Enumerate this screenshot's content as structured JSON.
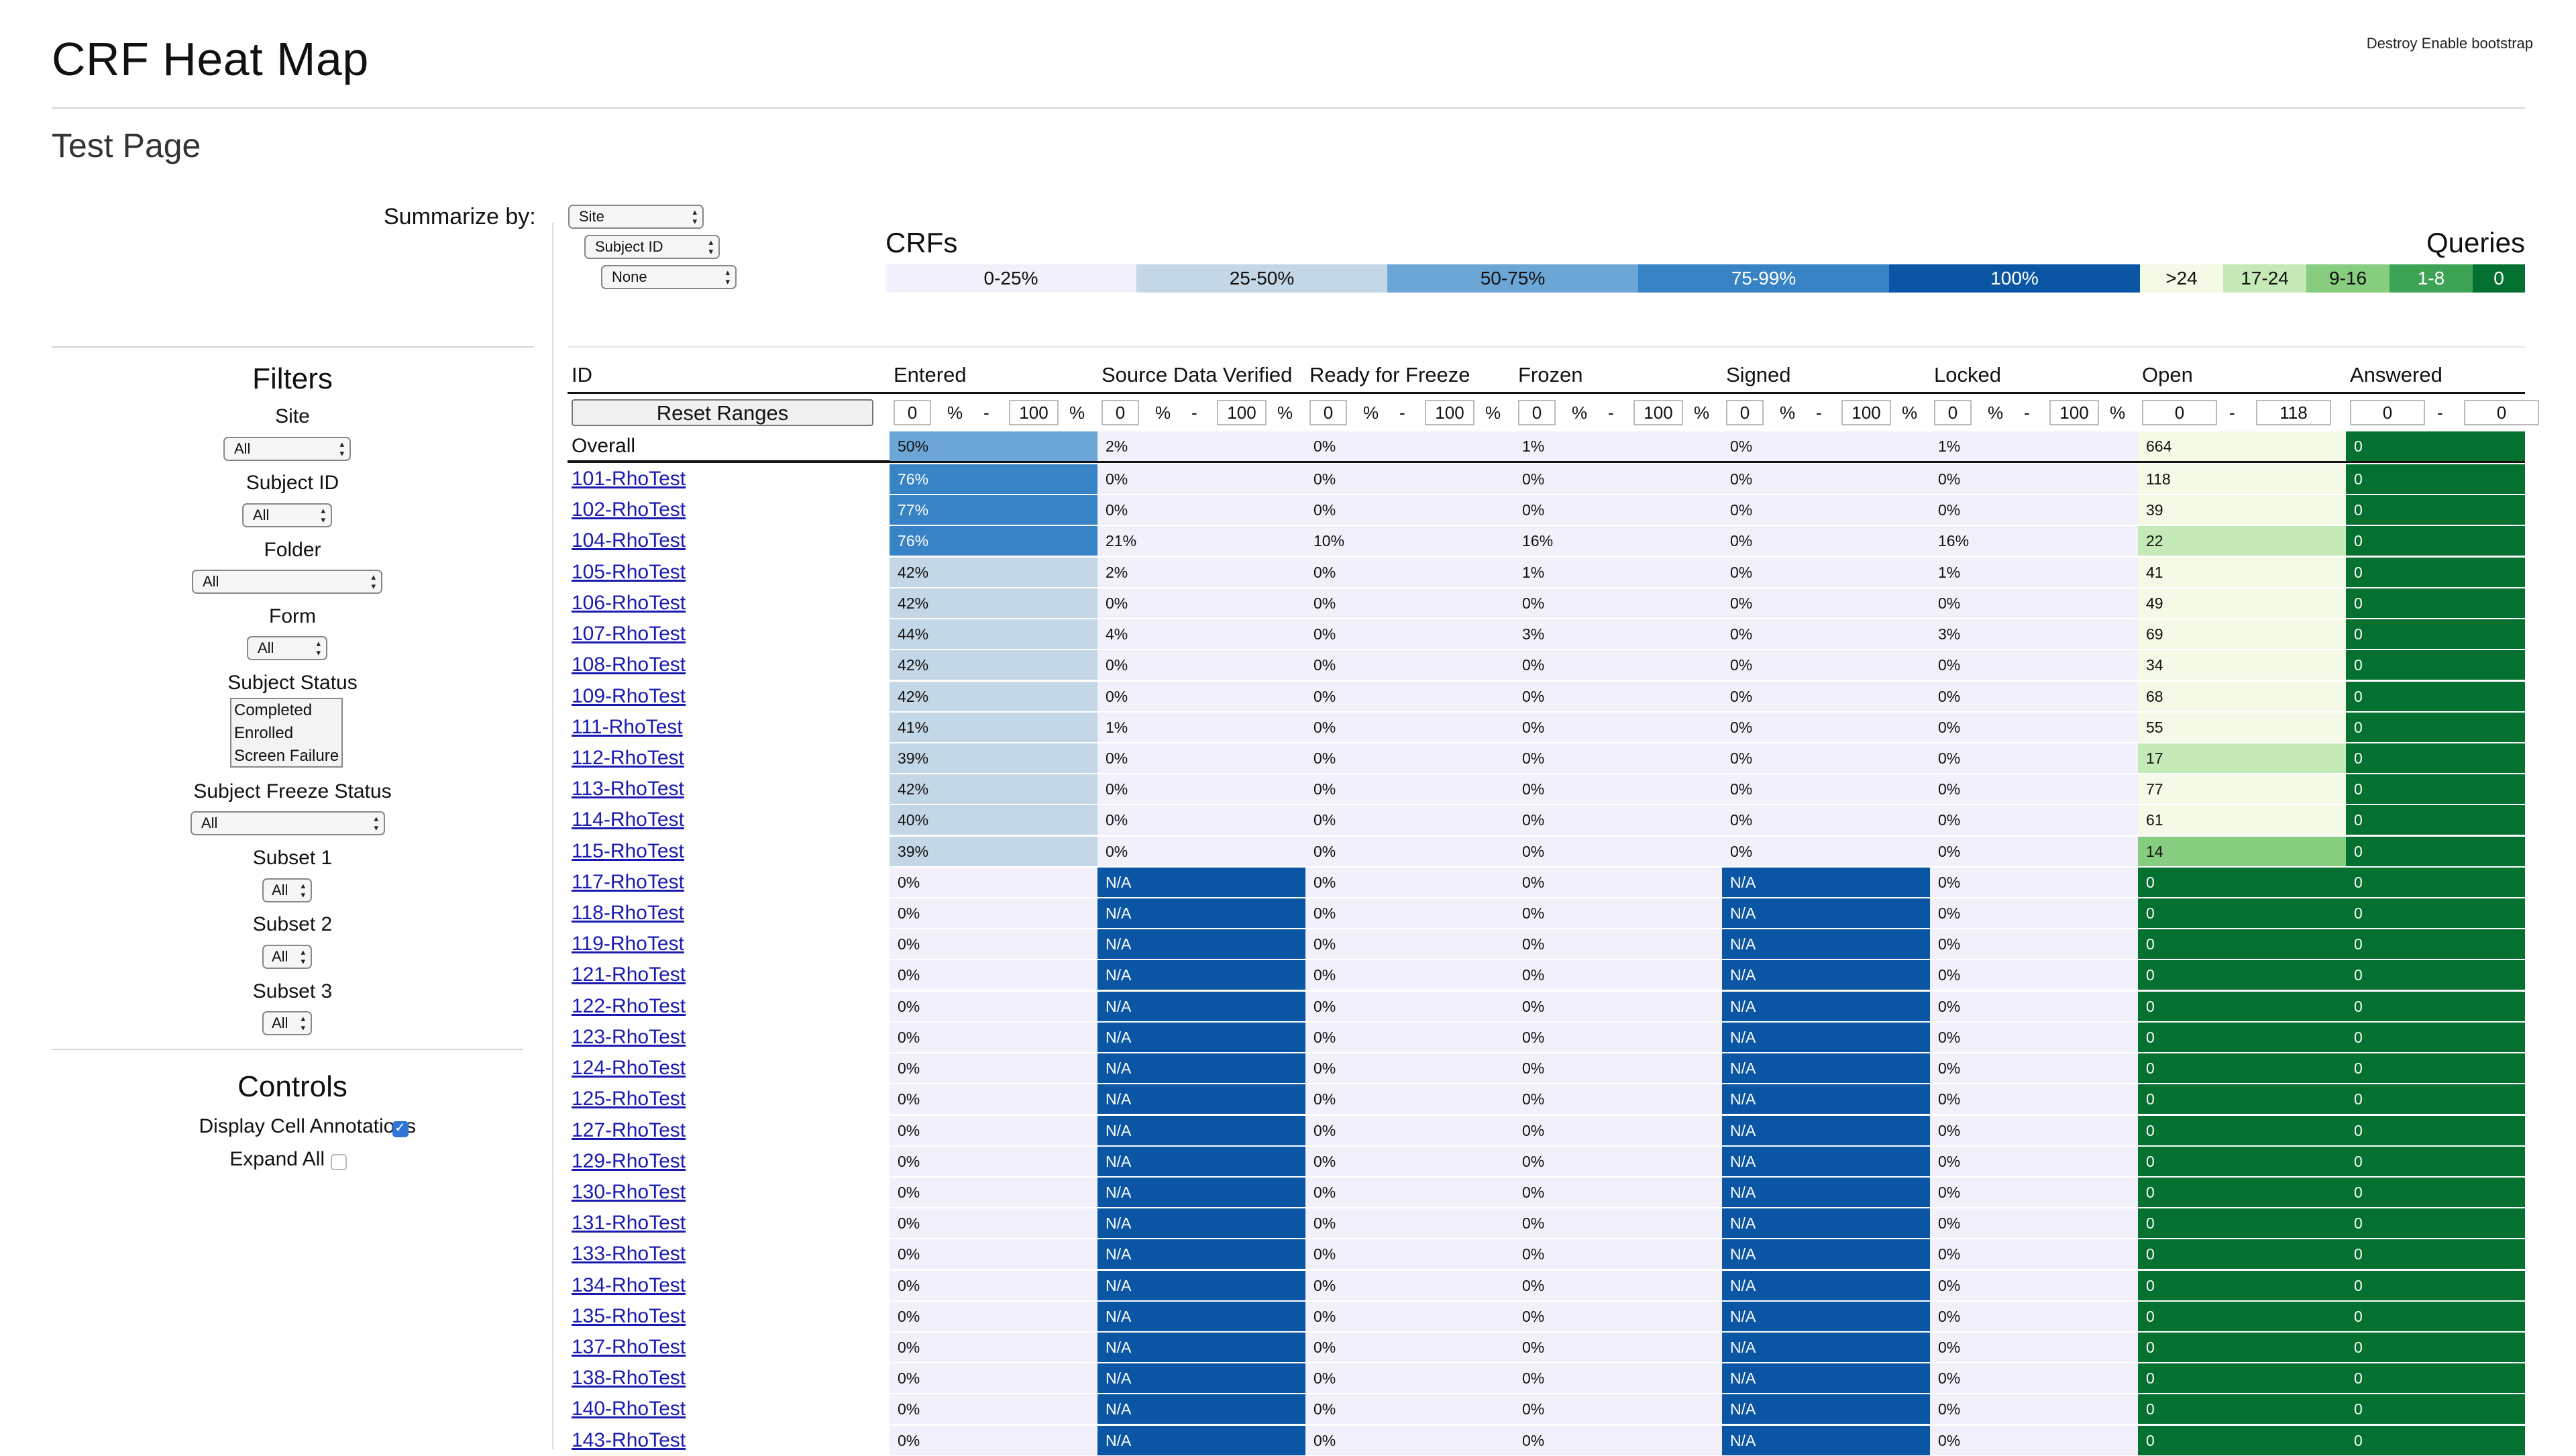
{
  "header": {
    "title": "CRF Heat Map",
    "subtitle": "Test Page",
    "link1": "Destroy",
    "link2": "Enable bootstrap"
  },
  "summarize": {
    "label": "Summarize by:",
    "level1": "Site",
    "level2": "Subject ID",
    "level3": "None"
  },
  "legend": {
    "crfs_title": "CRFs",
    "queries_title": "Queries",
    "crfs": [
      "0-25%",
      "25-50%",
      "50-75%",
      "75-99%",
      "100%"
    ],
    "queries": [
      ">24",
      "17-24",
      "9-16",
      "1-8",
      "0"
    ],
    "colors": {
      "crf_0_25": "#f1f0fb",
      "crf_25_50": "#c3d7e6",
      "crf_50_75": "#6ca6d6",
      "crf_75_99": "#3783c5",
      "crf_100": "#0b56a4",
      "q_gt24": "#f5fae6",
      "q_17_24": "#c6eab7",
      "q_9_16": "#87cd7f",
      "q_1_8": "#3da456",
      "q_0": "#057130"
    }
  },
  "filters": {
    "title": "Filters",
    "site_label": "Site",
    "site_value": "All",
    "subject_label": "Subject ID",
    "subject_value": "All",
    "folder_label": "Folder",
    "folder_value": "All",
    "form_label": "Form",
    "form_value": "All",
    "status_label": "Subject Status",
    "status_options": [
      "Completed",
      "Enrolled",
      "Screen Failure"
    ],
    "freeze_label": "Subject Freeze Status",
    "freeze_value": "All",
    "subset1_label": "Subset 1",
    "subset1_value": "All",
    "subset2_label": "Subset 2",
    "subset2_value": "All",
    "subset3_label": "Subset 3",
    "subset3_value": "All"
  },
  "controls": {
    "title": "Controls",
    "annotations_label": "Display Cell Annotations",
    "annotations_checked": true,
    "expand_label": "Expand All",
    "expand_checked": false
  },
  "table": {
    "columns": [
      "ID",
      "Entered",
      "Source Data Verified",
      "Ready for Freeze",
      "Frozen",
      "Signed",
      "Locked",
      "Open",
      "Answered"
    ],
    "reset_label": "Reset Ranges",
    "pct_ranges": [
      {
        "min": "0",
        "sep": "-",
        "max": "100",
        "unit": "%"
      },
      {
        "min": "0",
        "sep": "-",
        "max": "100",
        "unit": "%"
      },
      {
        "min": "0",
        "sep": "-",
        "max": "100",
        "unit": "%"
      },
      {
        "min": "0",
        "sep": "-",
        "max": "100",
        "unit": "%"
      },
      {
        "min": "0",
        "sep": "-",
        "max": "100",
        "unit": "%"
      },
      {
        "min": "0",
        "sep": "-",
        "max": "100",
        "unit": "%"
      }
    ],
    "query_ranges": [
      {
        "min": "0",
        "sep": "-",
        "max": "118"
      },
      {
        "min": "0",
        "sep": "-",
        "max": "0"
      }
    ],
    "rows": [
      {
        "id": "Overall",
        "cells": [
          "50%",
          "2%",
          "0%",
          "1%",
          "0%",
          "1%",
          "664",
          "0"
        ],
        "link": false
      },
      {
        "id": "101-RhoTest",
        "cells": [
          "76%",
          "0%",
          "0%",
          "0%",
          "0%",
          "0%",
          "118",
          "0"
        ],
        "link": true
      },
      {
        "id": "102-RhoTest",
        "cells": [
          "77%",
          "0%",
          "0%",
          "0%",
          "0%",
          "0%",
          "39",
          "0"
        ],
        "link": true
      },
      {
        "id": "104-RhoTest",
        "cells": [
          "76%",
          "21%",
          "10%",
          "16%",
          "0%",
          "16%",
          "22",
          "0"
        ],
        "link": true
      },
      {
        "id": "105-RhoTest",
        "cells": [
          "42%",
          "2%",
          "0%",
          "1%",
          "0%",
          "1%",
          "41",
          "0"
        ],
        "link": true
      },
      {
        "id": "106-RhoTest",
        "cells": [
          "42%",
          "0%",
          "0%",
          "0%",
          "0%",
          "0%",
          "49",
          "0"
        ],
        "link": true
      },
      {
        "id": "107-RhoTest",
        "cells": [
          "44%",
          "4%",
          "0%",
          "3%",
          "0%",
          "3%",
          "69",
          "0"
        ],
        "link": true
      },
      {
        "id": "108-RhoTest",
        "cells": [
          "42%",
          "0%",
          "0%",
          "0%",
          "0%",
          "0%",
          "34",
          "0"
        ],
        "link": true
      },
      {
        "id": "109-RhoTest",
        "cells": [
          "42%",
          "0%",
          "0%",
          "0%",
          "0%",
          "0%",
          "68",
          "0"
        ],
        "link": true
      },
      {
        "id": "111-RhoTest",
        "cells": [
          "41%",
          "1%",
          "0%",
          "0%",
          "0%",
          "0%",
          "55",
          "0"
        ],
        "link": true
      },
      {
        "id": "112-RhoTest",
        "cells": [
          "39%",
          "0%",
          "0%",
          "0%",
          "0%",
          "0%",
          "17",
          "0"
        ],
        "link": true
      },
      {
        "id": "113-RhoTest",
        "cells": [
          "42%",
          "0%",
          "0%",
          "0%",
          "0%",
          "0%",
          "77",
          "0"
        ],
        "link": true
      },
      {
        "id": "114-RhoTest",
        "cells": [
          "40%",
          "0%",
          "0%",
          "0%",
          "0%",
          "0%",
          "61",
          "0"
        ],
        "link": true
      },
      {
        "id": "115-RhoTest",
        "cells": [
          "39%",
          "0%",
          "0%",
          "0%",
          "0%",
          "0%",
          "14",
          "0"
        ],
        "link": true
      },
      {
        "id": "117-RhoTest",
        "cells": [
          "0%",
          "N/A",
          "0%",
          "0%",
          "N/A",
          "0%",
          "0",
          "0"
        ],
        "link": true
      },
      {
        "id": "118-RhoTest",
        "cells": [
          "0%",
          "N/A",
          "0%",
          "0%",
          "N/A",
          "0%",
          "0",
          "0"
        ],
        "link": true
      },
      {
        "id": "119-RhoTest",
        "cells": [
          "0%",
          "N/A",
          "0%",
          "0%",
          "N/A",
          "0%",
          "0",
          "0"
        ],
        "link": true
      },
      {
        "id": "121-RhoTest",
        "cells": [
          "0%",
          "N/A",
          "0%",
          "0%",
          "N/A",
          "0%",
          "0",
          "0"
        ],
        "link": true
      },
      {
        "id": "122-RhoTest",
        "cells": [
          "0%",
          "N/A",
          "0%",
          "0%",
          "N/A",
          "0%",
          "0",
          "0"
        ],
        "link": true
      },
      {
        "id": "123-RhoTest",
        "cells": [
          "0%",
          "N/A",
          "0%",
          "0%",
          "N/A",
          "0%",
          "0",
          "0"
        ],
        "link": true
      },
      {
        "id": "124-RhoTest",
        "cells": [
          "0%",
          "N/A",
          "0%",
          "0%",
          "N/A",
          "0%",
          "0",
          "0"
        ],
        "link": true
      },
      {
        "id": "125-RhoTest",
        "cells": [
          "0%",
          "N/A",
          "0%",
          "0%",
          "N/A",
          "0%",
          "0",
          "0"
        ],
        "link": true
      },
      {
        "id": "127-RhoTest",
        "cells": [
          "0%",
          "N/A",
          "0%",
          "0%",
          "N/A",
          "0%",
          "0",
          "0"
        ],
        "link": true
      },
      {
        "id": "129-RhoTest",
        "cells": [
          "0%",
          "N/A",
          "0%",
          "0%",
          "N/A",
          "0%",
          "0",
          "0"
        ],
        "link": true
      },
      {
        "id": "130-RhoTest",
        "cells": [
          "0%",
          "N/A",
          "0%",
          "0%",
          "N/A",
          "0%",
          "0",
          "0"
        ],
        "link": true
      },
      {
        "id": "131-RhoTest",
        "cells": [
          "0%",
          "N/A",
          "0%",
          "0%",
          "N/A",
          "0%",
          "0",
          "0"
        ],
        "link": true
      },
      {
        "id": "133-RhoTest",
        "cells": [
          "0%",
          "N/A",
          "0%",
          "0%",
          "N/A",
          "0%",
          "0",
          "0"
        ],
        "link": true
      },
      {
        "id": "134-RhoTest",
        "cells": [
          "0%",
          "N/A",
          "0%",
          "0%",
          "N/A",
          "0%",
          "0",
          "0"
        ],
        "link": true
      },
      {
        "id": "135-RhoTest",
        "cells": [
          "0%",
          "N/A",
          "0%",
          "0%",
          "N/A",
          "0%",
          "0",
          "0"
        ],
        "link": true
      },
      {
        "id": "137-RhoTest",
        "cells": [
          "0%",
          "N/A",
          "0%",
          "0%",
          "N/A",
          "0%",
          "0",
          "0"
        ],
        "link": true
      },
      {
        "id": "138-RhoTest",
        "cells": [
          "0%",
          "N/A",
          "0%",
          "0%",
          "N/A",
          "0%",
          "0",
          "0"
        ],
        "link": true
      },
      {
        "id": "140-RhoTest",
        "cells": [
          "0%",
          "N/A",
          "0%",
          "0%",
          "N/A",
          "0%",
          "0",
          "0"
        ],
        "link": true
      },
      {
        "id": "143-RhoTest",
        "cells": [
          "0%",
          "N/A",
          "0%",
          "0%",
          "N/A",
          "0%",
          "0",
          "0"
        ],
        "link": true
      }
    ]
  }
}
